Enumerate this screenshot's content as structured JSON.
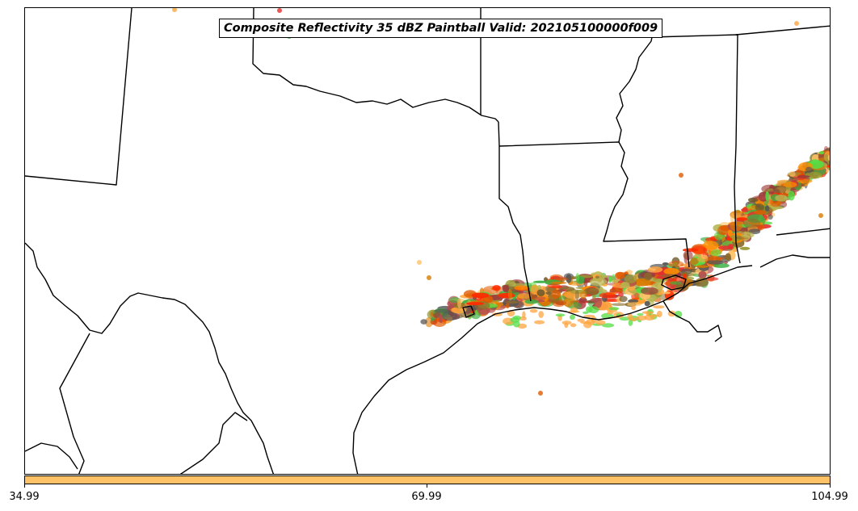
{
  "title": "Composite Reflectivity 35 dBZ Paintball Valid: 202105100000f009",
  "colorbar": {
    "color": "#ffc266",
    "tick_labels": [
      "34.99",
      "69.99",
      "104.99"
    ]
  },
  "paintball_colors": [
    "#ff8c00",
    "#e05a00",
    "#ff2a00",
    "#e62e2e",
    "#ffa640",
    "#ffc266",
    "#9a9a34",
    "#b5b552",
    "#8a6b2a",
    "#6e5a2c",
    "#9c3a3a",
    "#b34d4d",
    "#55dd44",
    "#3cb043",
    "#555555",
    "#d97a00"
  ]
}
